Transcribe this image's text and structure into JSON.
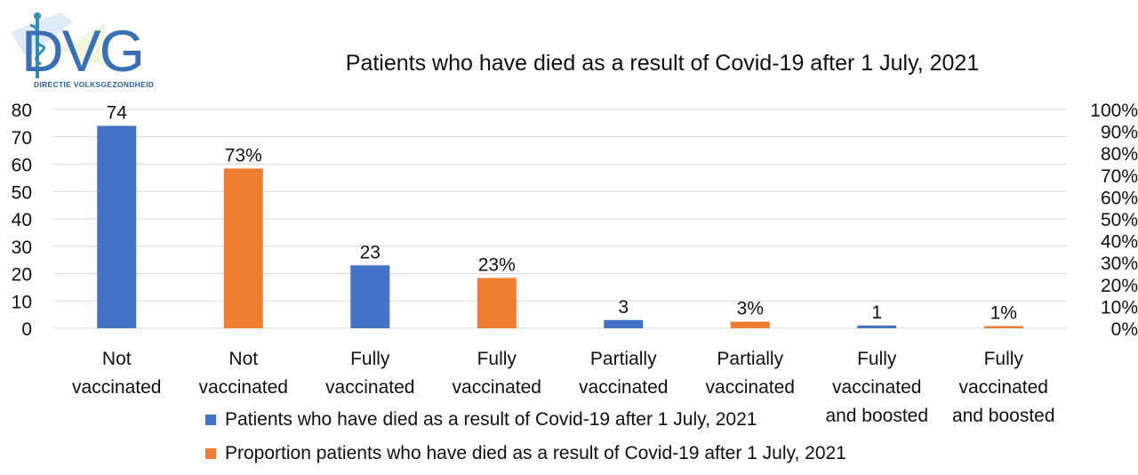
{
  "logo": {
    "text": "DVG",
    "subtitle": "DIRECTIE VOLKSGEZONDHEID"
  },
  "chart_data": {
    "type": "bar",
    "title": "Patients who have died as a result of Covid-19 after 1 July, 2021",
    "categories": [
      [
        "Not",
        "vaccinated"
      ],
      [
        "Not",
        "vaccinated"
      ],
      [
        "Fully",
        "vaccinated"
      ],
      [
        "Fully",
        "vaccinated"
      ],
      [
        "Partially",
        "vaccinated"
      ],
      [
        "Partially",
        "vaccinated"
      ],
      [
        "Fully",
        "vaccinated",
        "and boosted"
      ],
      [
        "Fully",
        "vaccinated",
        "and boosted"
      ]
    ],
    "series": [
      {
        "name": "Patients who have died as a result of Covid-19 after 1 July, 2021",
        "axis": "left",
        "color": "#4472c4",
        "points": [
          {
            "category_index": 0,
            "value": 74,
            "label": "74"
          },
          {
            "category_index": 2,
            "value": 23,
            "label": "23"
          },
          {
            "category_index": 4,
            "value": 3,
            "label": "3"
          },
          {
            "category_index": 6,
            "value": 1,
            "label": "1"
          }
        ]
      },
      {
        "name": "Proportion patients who have died as a result of Covid-19 after 1 July, 2021",
        "axis": "right",
        "color": "#ed7d31",
        "points": [
          {
            "category_index": 1,
            "value": 73,
            "label": "73%"
          },
          {
            "category_index": 3,
            "value": 23,
            "label": "23%"
          },
          {
            "category_index": 5,
            "value": 3,
            "label": "3%"
          },
          {
            "category_index": 7,
            "value": 1,
            "label": "1%"
          }
        ]
      }
    ],
    "y_left": {
      "min": 0,
      "max": 80,
      "ticks": [
        "0",
        "10",
        "20",
        "30",
        "40",
        "50",
        "60",
        "70",
        "80"
      ]
    },
    "y_right": {
      "min": 0,
      "max": 100,
      "ticks": [
        "0%",
        "10%",
        "20%",
        "30%",
        "40%",
        "50%",
        "60%",
        "70%",
        "80%",
        "90%",
        "100%"
      ]
    },
    "grid": true,
    "legend_position": "bottom"
  }
}
